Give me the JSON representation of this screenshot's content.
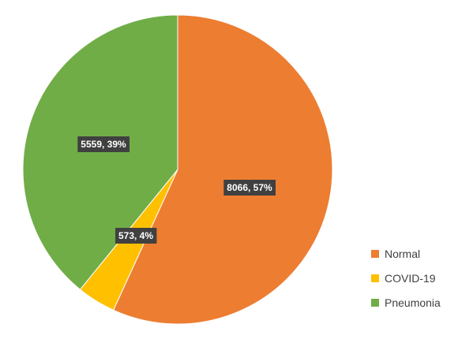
{
  "chart_data": {
    "type": "pie",
    "start_angle_deg": 0,
    "direction": "clockwise",
    "legend_position": "right-bottom",
    "slices": [
      {
        "name": "Normal",
        "value": 8066,
        "percent": "57%",
        "label": "8066, 57%",
        "color": "#ED7D31"
      },
      {
        "name": "COVID-19",
        "value": 573,
        "percent": "4%",
        "label": "573, 4%",
        "color": "#FFC000"
      },
      {
        "name": "Pneumonia",
        "value": 5559,
        "percent": "39%",
        "label": "5559, 39%",
        "color": "#70AD47"
      }
    ],
    "data_label_background": "#404040",
    "data_label_color": "#FFFFFF"
  }
}
